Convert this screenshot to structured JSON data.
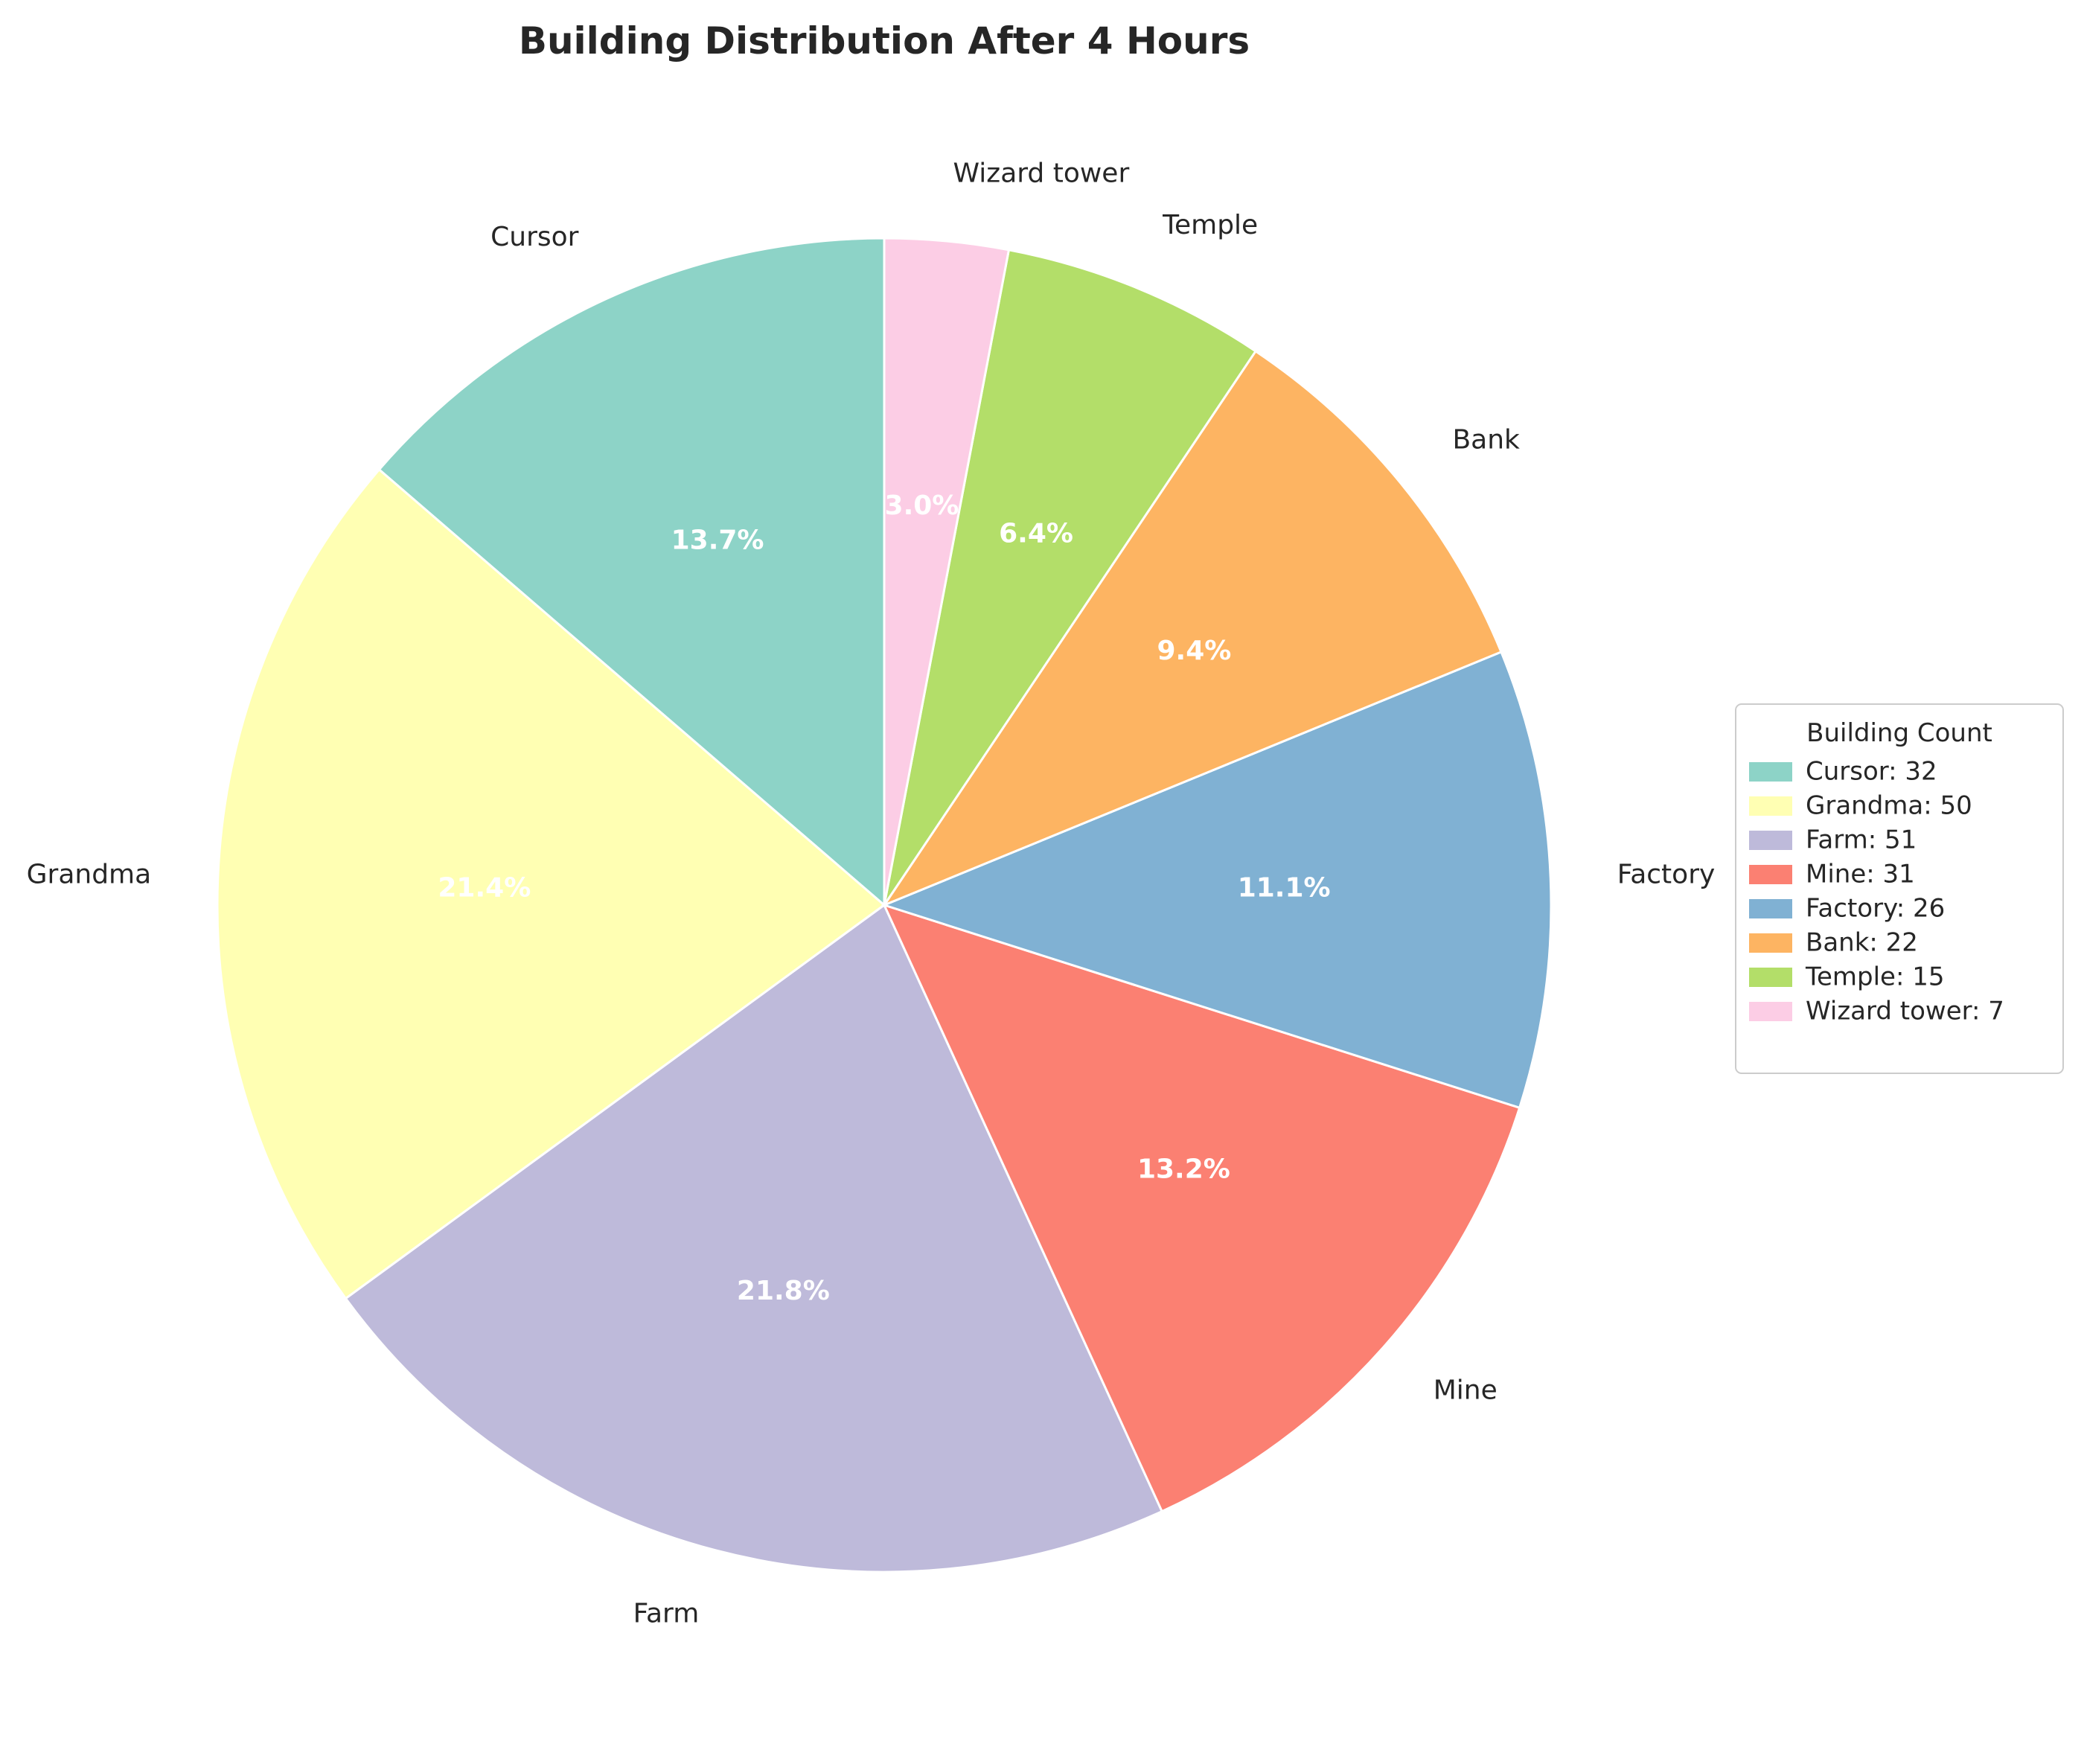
{
  "chart_data": {
    "type": "pie",
    "title": "Building Distribution After 4 Hours",
    "categories": [
      "Cursor",
      "Grandma",
      "Farm",
      "Mine",
      "Factory",
      "Bank",
      "Temple",
      "Wizard tower"
    ],
    "values": [
      32,
      50,
      51,
      31,
      26,
      22,
      15,
      7
    ],
    "percent_labels": [
      "13.7%",
      "21.4%",
      "21.8%",
      "13.2%",
      "11.1%",
      "9.4%",
      "6.4%",
      "3.0%"
    ],
    "colors": [
      "#8dd3c7",
      "#ffffb3",
      "#bebada",
      "#fb8072",
      "#80b1d3",
      "#fdb462",
      "#b3de69",
      "#fccde5"
    ],
    "start_angle_deg": 90,
    "direction": "counterclockwise",
    "legend": {
      "title": "Building Count",
      "placement": "right",
      "entries": [
        "Cursor: 32",
        "Grandma: 50",
        "Farm: 51",
        "Mine: 31",
        "Factory: 26",
        "Bank: 22",
        "Temple: 15",
        "Wizard tower: 7"
      ]
    }
  }
}
